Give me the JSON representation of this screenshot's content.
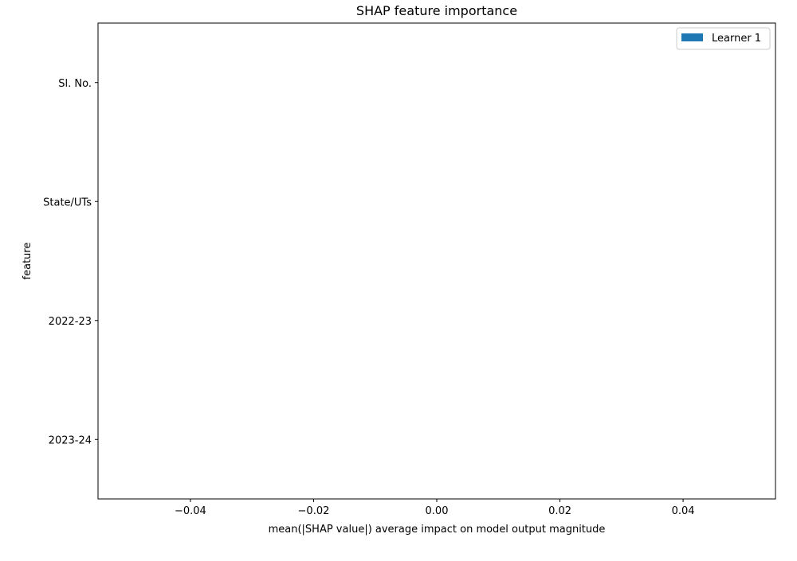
{
  "chart_data": {
    "type": "bar",
    "orientation": "horizontal",
    "title": "SHAP feature importance",
    "xlabel": "mean(|SHAP value|) average impact on model output magnitude",
    "ylabel": "feature",
    "categories": [
      "Sl. No.",
      "State/UTs",
      "2022-23",
      "2023-24"
    ],
    "series": [
      {
        "name": "Learner 1",
        "values": [
          0,
          0,
          0,
          0
        ],
        "color": "#1f77b4"
      }
    ],
    "xlim": [
      -0.055,
      0.055
    ],
    "x_ticks": [
      -0.04,
      -0.02,
      0.0,
      0.02,
      0.04
    ],
    "x_tick_labels": [
      "−0.04",
      "−0.02",
      "0.00",
      "0.02",
      "0.04"
    ],
    "grid": false,
    "legend_position": "top-right"
  }
}
